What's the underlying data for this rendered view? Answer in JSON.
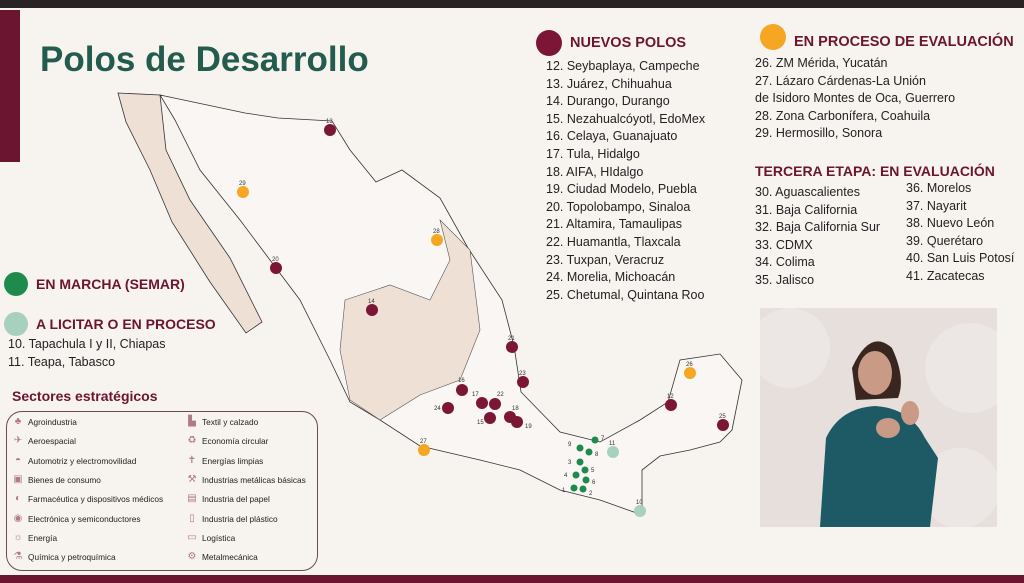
{
  "title": "Polos de Desarrollo",
  "colors": {
    "maroon": "#7b1636",
    "green": "#1e8a4c",
    "light_green": "#a8d0bf",
    "orange": "#f5a623",
    "state_fill": "#efe0d6"
  },
  "legend": {
    "en_marcha": "EN MARCHA (SEMAR)",
    "a_licitar": "A LICITAR O EN PROCESO",
    "a_licitar_items": [
      "10. Tapachula I y II, Chiapas",
      "11. Teapa, Tabasco"
    ],
    "nuevos_polos": "NUEVOS POLOS",
    "nuevos_items": [
      "12.    Seybaplaya, Campeche",
      "13. Juárez, Chihuahua",
      "14. Durango, Durango",
      "15. Nezahualcóyotl, EdoMex",
      "16. Celaya, Guanajuato",
      "17. Tula, Hidalgo",
      "18. AIFA, HIdalgo",
      "19. Ciudad Modelo, Puebla",
      "20.     Topolobampo, Sinaloa",
      "21. Altamira, Tamaulipas",
      "22. Huamantla, Tlaxcala",
      "23.     Tuxpan, Veracruz",
      "24. Morelia, Michoacán",
      "25. Chetumal, Quintana Roo"
    ],
    "en_proceso": "EN PROCESO DE EVALUACIÓN",
    "en_proceso_items": [
      "26. ZM Mérida, Yucatán",
      "27. Lázaro Cárdenas-La Unión",
      "de Isidoro Montes de Oca, Guerrero",
      "28. Zona Carbonífera, Coahuila",
      "29. Hermosillo, Sonora"
    ],
    "tercera": "TERCERA ETAPA: EN EVALUACIÓN",
    "tercera_col1": [
      "30. Aguascalientes",
      "31. Baja California",
      "32. Baja California Sur",
      "33. CDMX",
      "34. Colima",
      "35. Jalisco"
    ],
    "tercera_col2": [
      "36. Morelos",
      "37. Nayarit",
      "38. Nuevo León",
      "39. Querétaro",
      "40. San Luis Potosí",
      "41. Zacatecas"
    ]
  },
  "sectores": {
    "title": "Sectores estratégicos",
    "col1": [
      {
        "label": "Agroindustria",
        "icon": "wheat-icon"
      },
      {
        "label": "Aeroespacial",
        "icon": "airplane-icon"
      },
      {
        "label": "Automotriz y electromovilidad",
        "icon": "car-icon"
      },
      {
        "label": "Bienes de consumo",
        "icon": "shopping-icon"
      },
      {
        "label": "Farmacéutica y dispositivos médicos",
        "icon": "pill-icon"
      },
      {
        "label": "Electrónica y semiconductores",
        "icon": "chip-icon"
      },
      {
        "label": "Energía",
        "icon": "bulb-icon"
      },
      {
        "label": "Química y petroquímica",
        "icon": "flask-icon"
      }
    ],
    "col2": [
      {
        "label": "Textil y calzado",
        "icon": "shoe-icon"
      },
      {
        "label": "Economía circular",
        "icon": "recycle-icon"
      },
      {
        "label": "Energías limpias",
        "icon": "wind-icon"
      },
      {
        "label": "Industrias metálicas básicas",
        "icon": "crane-icon"
      },
      {
        "label": "Industria del papel",
        "icon": "paper-icon"
      },
      {
        "label": "Industria del plástico",
        "icon": "bottle-icon"
      },
      {
        "label": "Logística",
        "icon": "truck-icon"
      },
      {
        "label": "Metalmecánica",
        "icon": "gear-icon"
      }
    ]
  },
  "markers": [
    {
      "n": "13",
      "type": "nuevo"
    },
    {
      "n": "29",
      "type": "proceso"
    },
    {
      "n": "28",
      "type": "proceso"
    },
    {
      "n": "20",
      "type": "nuevo"
    },
    {
      "n": "14",
      "type": "nuevo"
    },
    {
      "n": "21",
      "type": "nuevo"
    },
    {
      "n": "23",
      "type": "nuevo"
    },
    {
      "n": "12",
      "type": "nuevo"
    },
    {
      "n": "26",
      "type": "proceso"
    },
    {
      "n": "25",
      "type": "nuevo"
    },
    {
      "n": "27",
      "type": "proceso"
    },
    {
      "n": "24",
      "type": "nuevo"
    },
    {
      "n": "16",
      "type": "nuevo"
    },
    {
      "n": "17",
      "type": "nuevo"
    },
    {
      "n": "22",
      "type": "nuevo"
    },
    {
      "n": "15",
      "type": "nuevo"
    },
    {
      "n": "18",
      "type": "nuevo"
    },
    {
      "n": "19",
      "type": "nuevo"
    },
    {
      "n": "9",
      "type": "marcha"
    },
    {
      "n": "7",
      "type": "marcha"
    },
    {
      "n": "8",
      "type": "marcha"
    },
    {
      "n": "3",
      "type": "marcha"
    },
    {
      "n": "4",
      "type": "marcha"
    },
    {
      "n": "5",
      "type": "marcha"
    },
    {
      "n": "6",
      "type": "marcha"
    },
    {
      "n": "1",
      "type": "marcha"
    },
    {
      "n": "2",
      "type": "marcha"
    },
    {
      "n": "11",
      "type": "licitar"
    },
    {
      "n": "10",
      "type": "licitar"
    }
  ]
}
